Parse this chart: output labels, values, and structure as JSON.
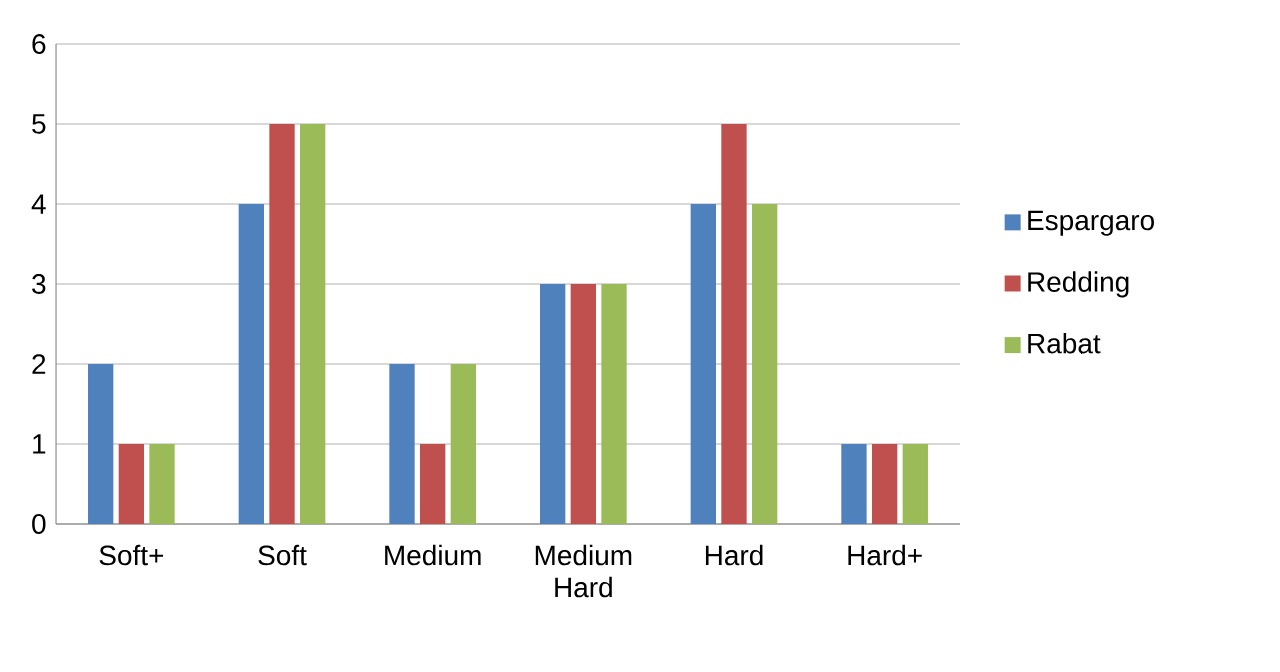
{
  "chart_data": {
    "type": "bar",
    "categories": [
      "Soft+",
      "Soft",
      "Medium",
      "Medium Hard",
      "Hard",
      "Hard+"
    ],
    "series": [
      {
        "name": "Espargaro",
        "color": "#4f81bd",
        "values": [
          2,
          4,
          2,
          3,
          4,
          1
        ]
      },
      {
        "name": "Redding",
        "color": "#c0504d",
        "values": [
          1,
          5,
          1,
          3,
          5,
          1
        ]
      },
      {
        "name": "Rabat",
        "color": "#9bbb59",
        "values": [
          1,
          5,
          2,
          3,
          4,
          1
        ]
      }
    ],
    "ylim": [
      0,
      6
    ],
    "yticks": [
      0,
      1,
      2,
      3,
      4,
      5,
      6
    ],
    "grid": "y",
    "legend": "right"
  }
}
